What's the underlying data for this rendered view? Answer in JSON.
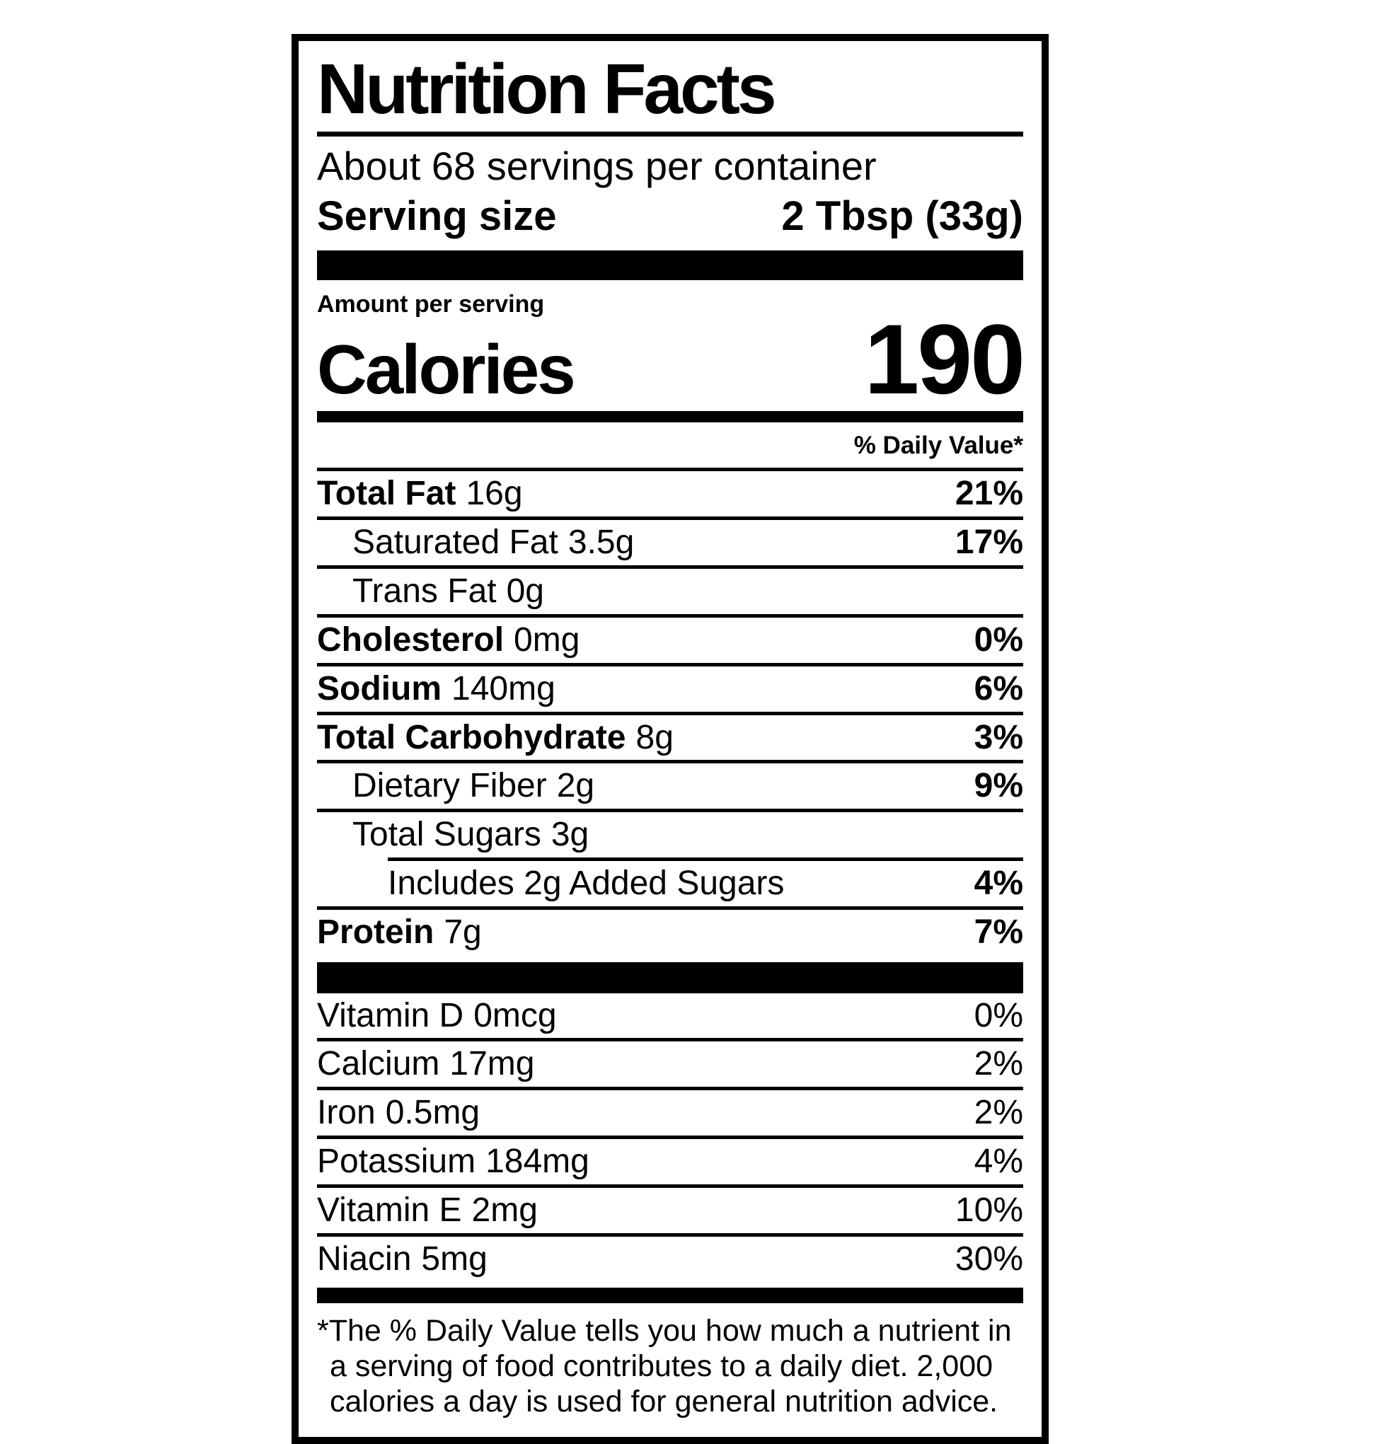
{
  "colors": {
    "ink": "#000000",
    "background": "#ffffff"
  },
  "label": {
    "title": "Nutrition Facts",
    "servings_per_container": "About 68 servings per container",
    "serving_size_label": "Serving size",
    "serving_size_value": "2 Tbsp (33g)",
    "amount_per_serving": "Amount per serving",
    "calories_label": "Calories",
    "calories_value": "190",
    "daily_value_header": "% Daily Value*",
    "nutrients": [
      {
        "name": "Total Fat",
        "amount": "16g",
        "dv": "21%",
        "name_bold": true,
        "dv_bold": true,
        "indent": 0,
        "rule_above": "none"
      },
      {
        "name": "Saturated Fat",
        "amount": "3.5g",
        "dv": "17%",
        "name_bold": false,
        "dv_bold": true,
        "indent": 1,
        "rule_above": "full"
      },
      {
        "name": "Trans Fat",
        "amount": "0g",
        "dv": "",
        "name_bold": false,
        "dv_bold": false,
        "indent": 1,
        "rule_above": "full"
      },
      {
        "name": "Cholesterol",
        "amount": "0mg",
        "dv": "0%",
        "name_bold": true,
        "dv_bold": true,
        "indent": 0,
        "rule_above": "full"
      },
      {
        "name": "Sodium",
        "amount": "140mg",
        "dv": "6%",
        "name_bold": true,
        "dv_bold": true,
        "indent": 0,
        "rule_above": "full"
      },
      {
        "name": "Total Carbohydrate",
        "amount": "8g",
        "dv": "3%",
        "name_bold": true,
        "dv_bold": true,
        "indent": 0,
        "rule_above": "full"
      },
      {
        "name": "Dietary Fiber",
        "amount": "2g",
        "dv": "9%",
        "name_bold": false,
        "dv_bold": true,
        "indent": 1,
        "rule_above": "full"
      },
      {
        "name": "Total Sugars",
        "amount": "3g",
        "dv": "",
        "name_bold": false,
        "dv_bold": false,
        "indent": 1,
        "rule_above": "full"
      },
      {
        "name": "Includes 2g Added Sugars",
        "amount": "",
        "dv": "4%",
        "name_bold": false,
        "dv_bold": true,
        "indent": 2,
        "rule_above": "partial"
      },
      {
        "name": "Protein",
        "amount": "7g",
        "dv": "7%",
        "name_bold": true,
        "dv_bold": true,
        "indent": 0,
        "rule_above": "full"
      }
    ],
    "micronutrients": [
      {
        "name": "Vitamin D",
        "amount": "0mcg",
        "dv": "0%",
        "name_bold": false,
        "dv_bold": false,
        "indent": 0,
        "rule_above": "none"
      },
      {
        "name": "Calcium",
        "amount": "17mg",
        "dv": "2%",
        "name_bold": false,
        "dv_bold": false,
        "indent": 0,
        "rule_above": "full"
      },
      {
        "name": "Iron",
        "amount": "0.5mg",
        "dv": "2%",
        "name_bold": false,
        "dv_bold": false,
        "indent": 0,
        "rule_above": "full"
      },
      {
        "name": "Potassium",
        "amount": "184mg",
        "dv": "4%",
        "name_bold": false,
        "dv_bold": false,
        "indent": 0,
        "rule_above": "full"
      },
      {
        "name": "Vitamin E",
        "amount": "2mg",
        "dv": "10%",
        "name_bold": false,
        "dv_bold": false,
        "indent": 0,
        "rule_above": "full"
      },
      {
        "name": "Niacin",
        "amount": "5mg",
        "dv": "30%",
        "name_bold": false,
        "dv_bold": false,
        "indent": 0,
        "rule_above": "full"
      }
    ],
    "footnote": "*The % Daily Value tells you how much a nutrient in a serving of food contributes to a daily diet. 2,000 calories a day is used for general nutrition advice."
  }
}
